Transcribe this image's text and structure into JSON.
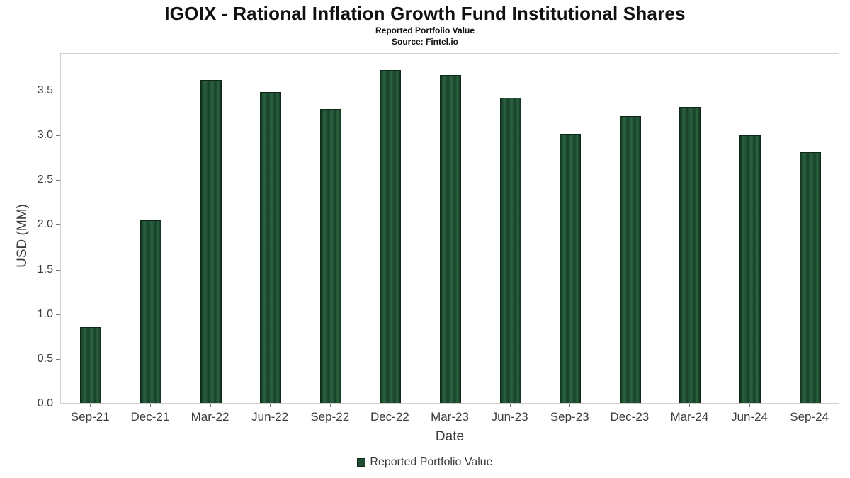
{
  "chart_data": {
    "type": "bar",
    "title": "IGOIX - Rational Inflation Growth Fund Institutional Shares",
    "subtitle": "Reported Portfolio Value",
    "source": "Source: Fintel.io",
    "xlabel": "Date",
    "ylabel": "USD (MM)",
    "categories": [
      "Sep-21",
      "Dec-21",
      "Mar-22",
      "Jun-22",
      "Sep-22",
      "Dec-22",
      "Mar-23",
      "Jun-23",
      "Sep-23",
      "Dec-23",
      "Mar-24",
      "Jun-24",
      "Sep-24"
    ],
    "values": [
      0.85,
      2.04,
      3.61,
      3.48,
      3.29,
      3.72,
      3.67,
      3.41,
      3.01,
      3.21,
      3.31,
      2.99,
      2.8
    ],
    "ylim": [
      0,
      3.92
    ],
    "yticks": [
      0.0,
      0.5,
      1.0,
      1.5,
      2.0,
      2.5,
      3.0,
      3.5
    ],
    "grid": false,
    "legend_position": "bottom",
    "legend": [
      "Reported Portfolio Value"
    ],
    "bar_color": "#1e4d30",
    "bar_edge_color": "#0d2818"
  }
}
